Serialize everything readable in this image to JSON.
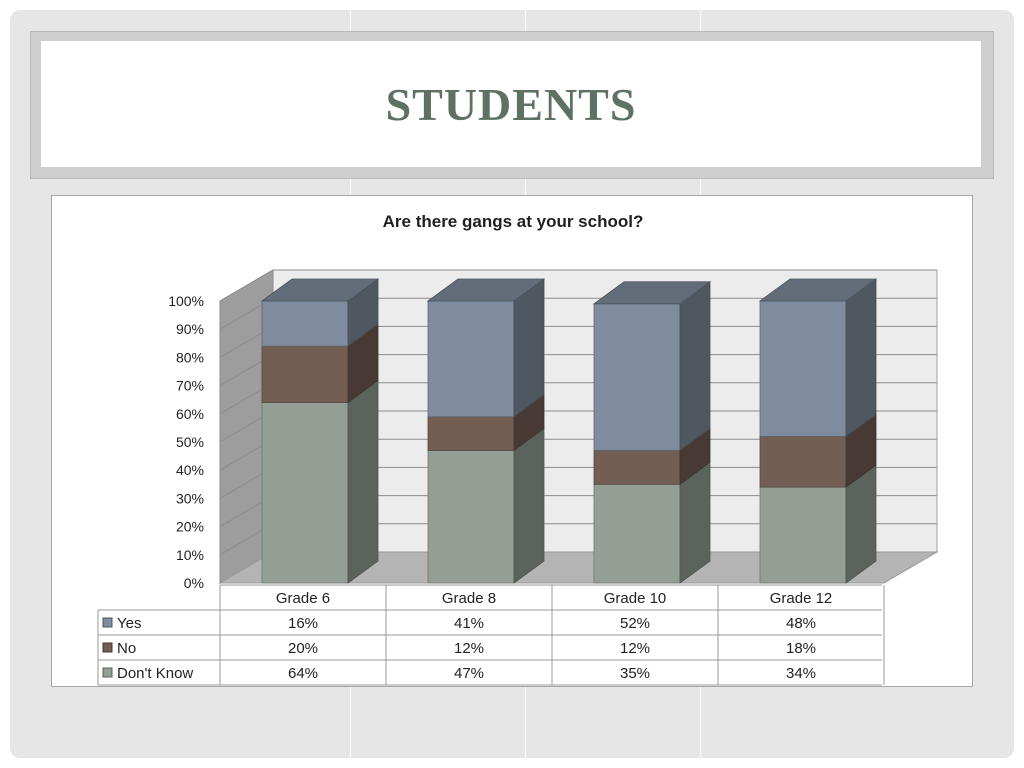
{
  "slide": {
    "title": "STUDENTS"
  },
  "colors": {
    "yes": "#7f8c9d",
    "no": "#735e54",
    "dont_know": "#939f95"
  },
  "chart_data": {
    "type": "bar",
    "stacked": true,
    "three_d": true,
    "title": "Are there gangs at your school?",
    "categories": [
      "Grade 6",
      "Grade 8",
      "Grade 10",
      "Grade 12"
    ],
    "series": [
      {
        "name": "Yes",
        "values": [
          16,
          41,
          52,
          48
        ],
        "labels": [
          "16%",
          "41%",
          "52%",
          "48%"
        ],
        "color": "#7f8c9d"
      },
      {
        "name": "No",
        "values": [
          20,
          12,
          12,
          18
        ],
        "labels": [
          "20%",
          "12%",
          "12%",
          "18%"
        ],
        "color": "#735e54"
      },
      {
        "name": "Don't Know",
        "values": [
          64,
          47,
          35,
          34
        ],
        "labels": [
          "64%",
          "47%",
          "35%",
          "34%"
        ],
        "color": "#939f95"
      }
    ],
    "stack_order_bottom_to_top": [
      "Don't Know",
      "No",
      "Yes"
    ],
    "y_ticks": [
      "0%",
      "10%",
      "20%",
      "30%",
      "40%",
      "50%",
      "60%",
      "70%",
      "80%",
      "90%",
      "100%"
    ],
    "ylim": [
      0,
      100
    ],
    "grid": true,
    "legend": "data-table-below"
  }
}
